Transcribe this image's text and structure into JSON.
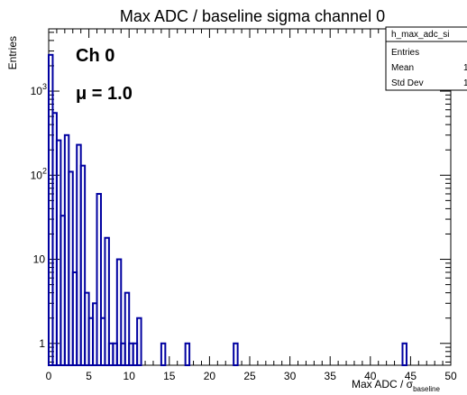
{
  "chart_data": {
    "type": "histogram",
    "title": "Max ADC / baseline sigma channel 0",
    "xlabel": "Max ADC / σ",
    "xlabel_subscript": "baseline",
    "ylabel": "Entries",
    "xlim": [
      0,
      50
    ],
    "ylim": [
      0.55,
      5500
    ],
    "y_scale": "log",
    "x_tick_labels": [
      "0",
      "5",
      "10",
      "15",
      "20",
      "25",
      "30",
      "35",
      "40",
      "45",
      "50"
    ],
    "y_tick_labels": [
      "1",
      "10",
      "10",
      "10"
    ],
    "y_tick_exponents": [
      "",
      "",
      "2",
      "3"
    ],
    "bin_width": 0.5,
    "bins": [
      {
        "x0": 0.0,
        "y": 2700
      },
      {
        "x0": 0.5,
        "y": 550
      },
      {
        "x0": 1.0,
        "y": 260
      },
      {
        "x0": 1.5,
        "y": 33
      },
      {
        "x0": 2.0,
        "y": 300
      },
      {
        "x0": 2.5,
        "y": 110
      },
      {
        "x0": 3.0,
        "y": 7
      },
      {
        "x0": 3.5,
        "y": 230
      },
      {
        "x0": 4.0,
        "y": 130
      },
      {
        "x0": 4.5,
        "y": 4
      },
      {
        "x0": 5.0,
        "y": 2
      },
      {
        "x0": 5.5,
        "y": 3
      },
      {
        "x0": 6.0,
        "y": 60
      },
      {
        "x0": 6.5,
        "y": 2
      },
      {
        "x0": 7.0,
        "y": 18
      },
      {
        "x0": 7.5,
        "y": 1
      },
      {
        "x0": 8.0,
        "y": 1
      },
      {
        "x0": 8.5,
        "y": 10
      },
      {
        "x0": 9.0,
        "y": 1
      },
      {
        "x0": 9.5,
        "y": 4
      },
      {
        "x0": 10.0,
        "y": 1
      },
      {
        "x0": 10.5,
        "y": 1
      },
      {
        "x0": 11.0,
        "y": 2
      },
      {
        "x0": 14.0,
        "y": 1
      },
      {
        "x0": 17.0,
        "y": 1
      },
      {
        "x0": 23.0,
        "y": 1
      },
      {
        "x0": 44.0,
        "y": 1
      }
    ],
    "series_color": "#0000a0"
  },
  "annotations": {
    "channel_label": "Ch 0",
    "mu_label": "μ = 1.0"
  },
  "stats_box": {
    "name": "h_max_adc_si",
    "rows": [
      {
        "label": "Entries",
        "value": ""
      },
      {
        "label": "Mean",
        "value": "1"
      },
      {
        "label": "Std Dev",
        "value": "1"
      }
    ]
  }
}
